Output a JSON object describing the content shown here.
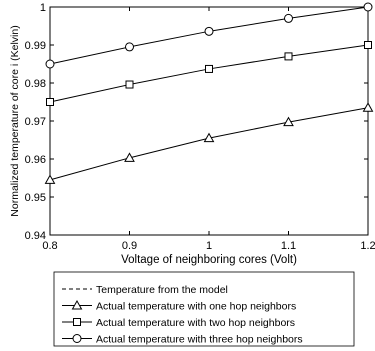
{
  "chart_data": {
    "type": "line",
    "xlabel": "Voltage of neighboring cores (Volt)",
    "ylabel": "Normalized temperature of core i (Kelvin)",
    "xlim": [
      0.8,
      1.2
    ],
    "ylim": [
      0.94,
      1.0
    ],
    "x_ticks": [
      0.8,
      0.9,
      1.0,
      1.1,
      1.2
    ],
    "x_tick_labels": [
      "0.8",
      "0.9",
      "1",
      "1.1",
      "1.2"
    ],
    "y_ticks": [
      0.94,
      0.95,
      0.96,
      0.97,
      0.98,
      0.99,
      1.0
    ],
    "y_tick_labels": [
      "0.94",
      "0.95",
      "0.96",
      "0.97",
      "0.98",
      "0.99",
      "1"
    ],
    "grid": false,
    "legend_position": "below",
    "x": [
      0.8,
      0.9,
      1.0,
      1.1,
      1.2
    ],
    "series": [
      {
        "name": "Temperature from the model",
        "marker": "none",
        "dash": "dashed",
        "values": [
          1.0,
          1.0,
          1.0,
          1.0,
          1.0
        ]
      },
      {
        "name": "Actual temperature with one hop neighbors",
        "marker": "triangle",
        "dash": "solid",
        "values": [
          0.9545,
          0.9603,
          0.9655,
          0.9697,
          0.9735
        ]
      },
      {
        "name": "Actual temperature with two hop neighbors",
        "marker": "square",
        "dash": "solid",
        "values": [
          0.975,
          0.9796,
          0.9837,
          0.987,
          0.99
        ]
      },
      {
        "name": "Actual temperature with three hop neighbors",
        "marker": "circle",
        "dash": "solid",
        "values": [
          0.985,
          0.9895,
          0.9936,
          0.997,
          1.0
        ]
      }
    ]
  }
}
